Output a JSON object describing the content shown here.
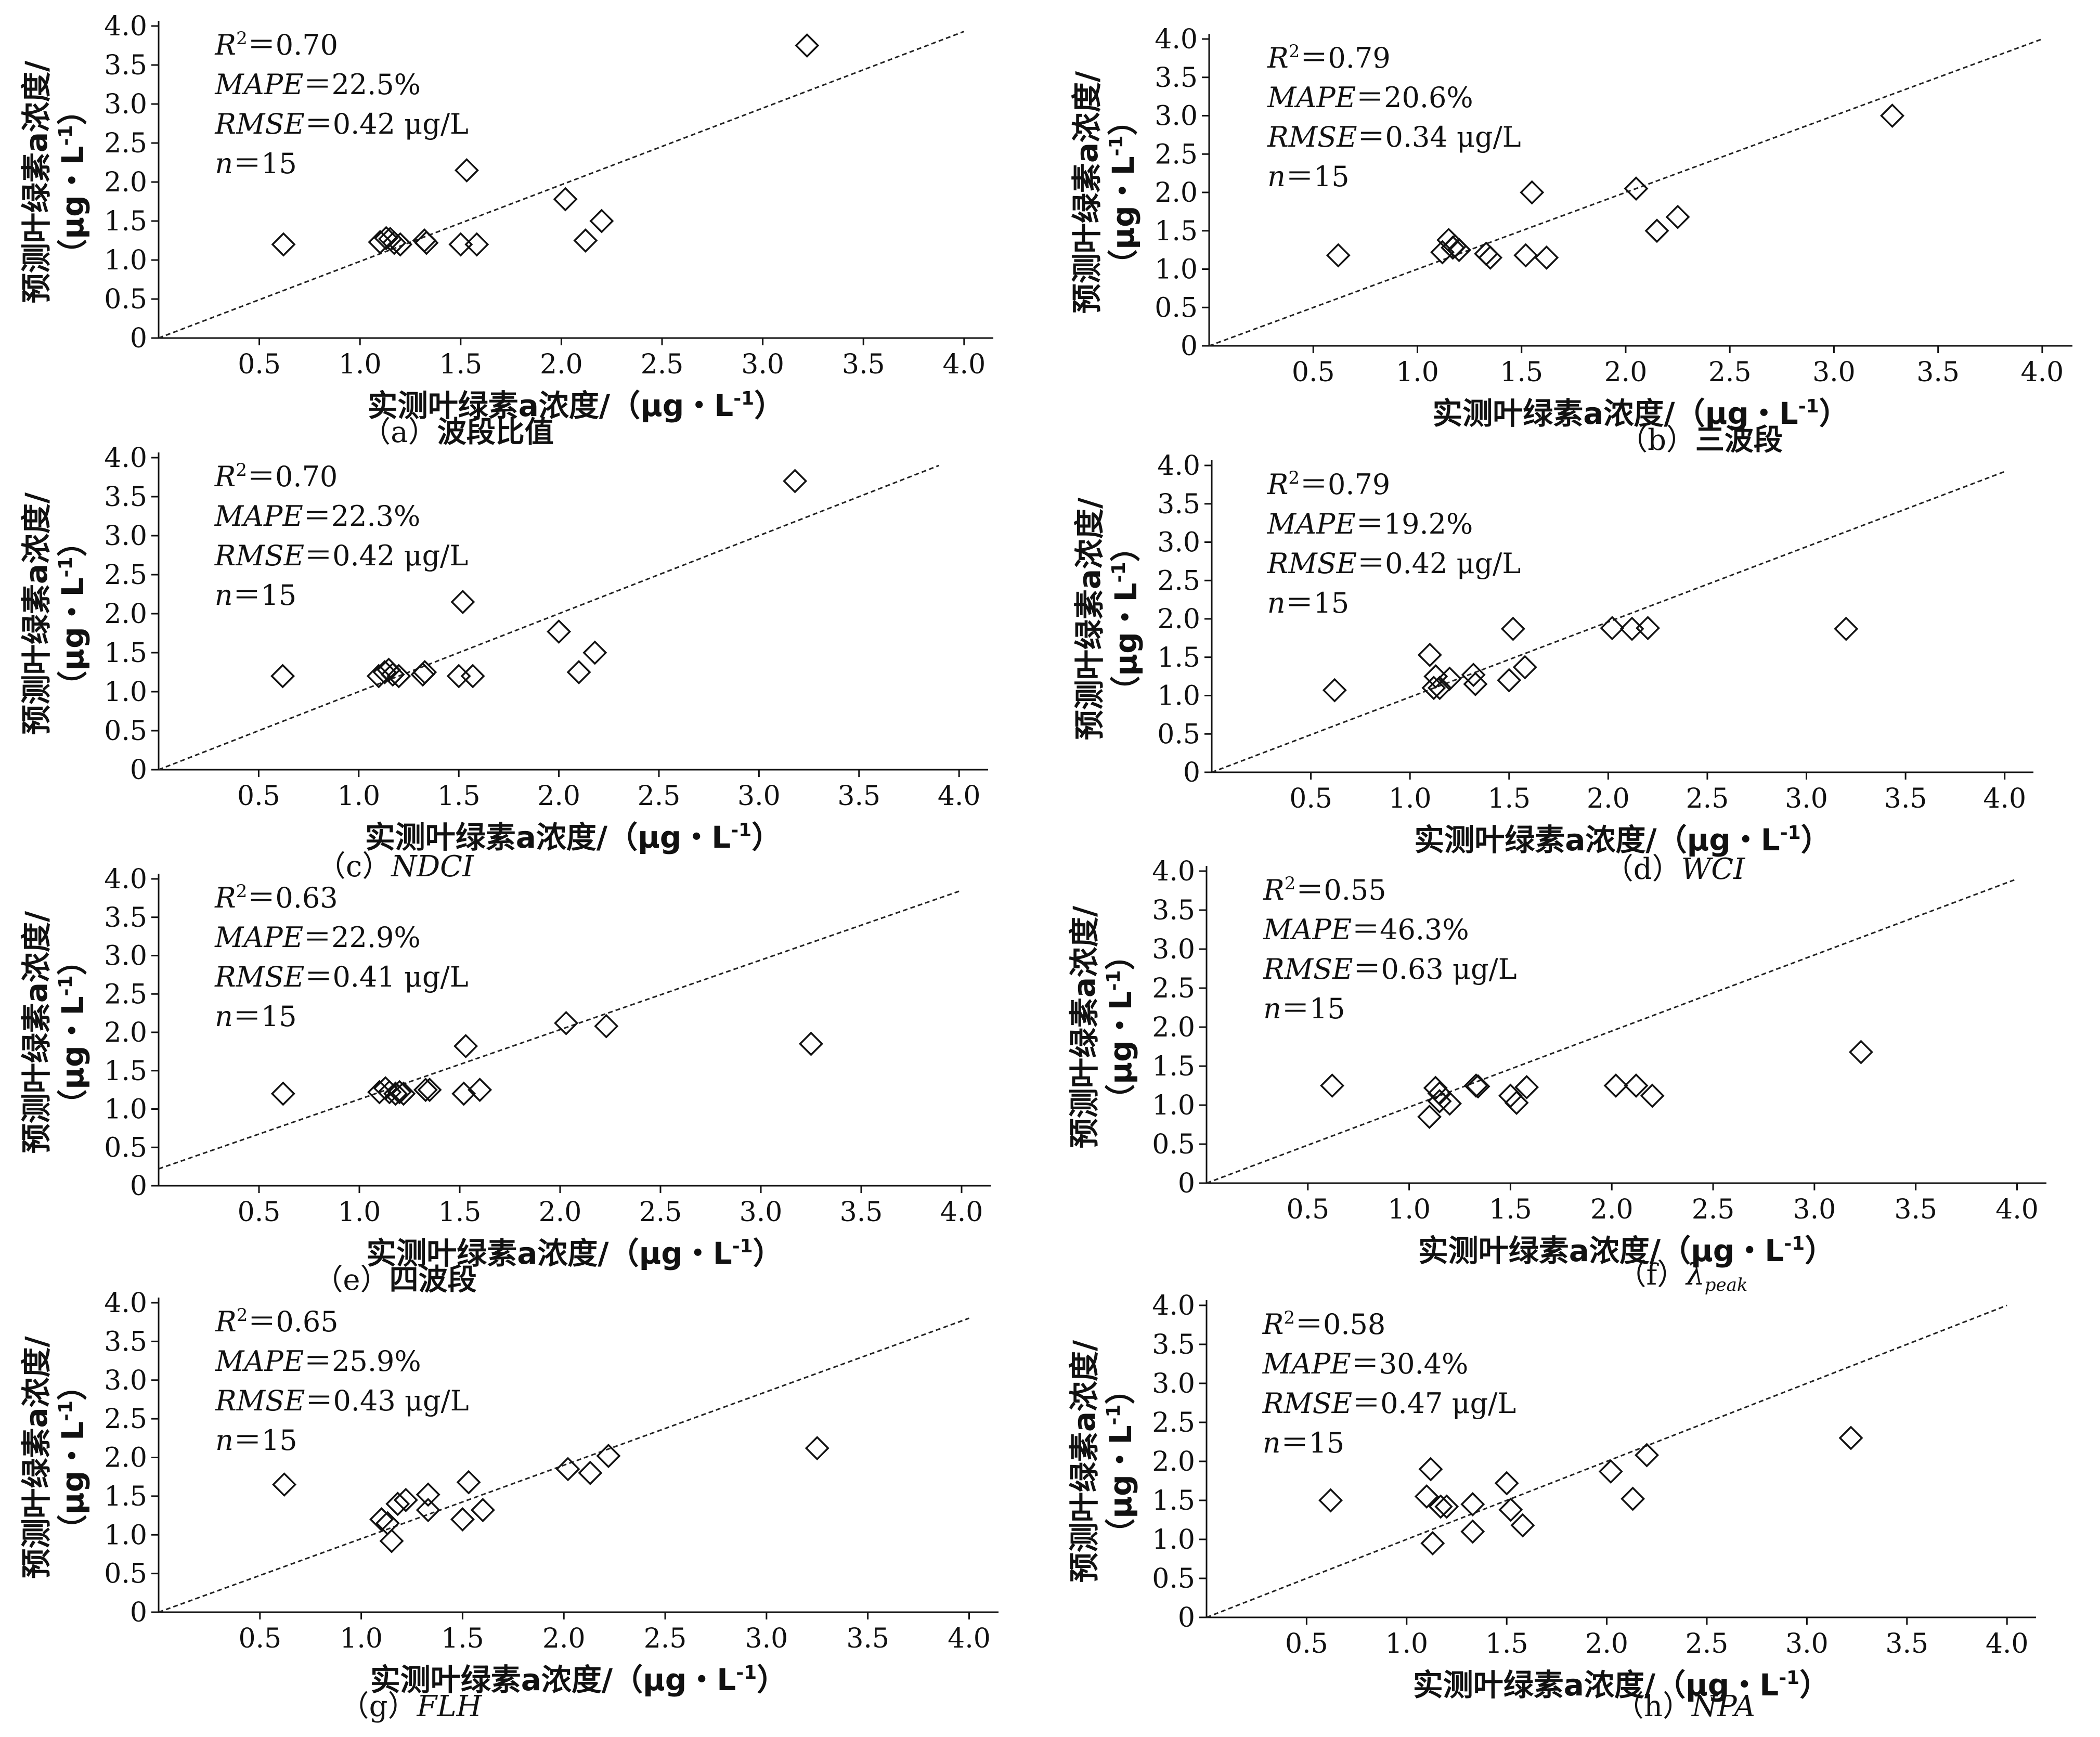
{
  "chart_data": [
    {
      "type": "scatter",
      "caption_prefix": "（a）",
      "caption": "波段比值",
      "caption_italic": false,
      "stats": {
        "r2": "0.70",
        "mape": "22.5%",
        "rmse": "0.42 μg/L",
        "n": "15"
      },
      "xlabel": "实测叶绿素a浓度/（μg・L-1）",
      "ylabel": "预测叶绿素a浓度/（μg・L-1）",
      "xlim": [
        0,
        4.0
      ],
      "ylim": [
        0,
        4.0
      ],
      "xticks": [
        "0.5",
        "1.0",
        "1.5",
        "2.0",
        "2.5",
        "3.0",
        "3.5",
        "4.0"
      ],
      "yticks": [
        "0",
        "0.5",
        "1.0",
        "1.5",
        "2.0",
        "2.5",
        "3.0",
        "3.5",
        "4.0"
      ],
      "ref_line": {
        "x": [
          0,
          4.0
        ],
        "y": [
          0,
          3.93
        ]
      },
      "points": [
        [
          0.62,
          1.2
        ],
        [
          1.1,
          1.23
        ],
        [
          1.13,
          1.28
        ],
        [
          1.15,
          1.27
        ],
        [
          1.17,
          1.22
        ],
        [
          1.2,
          1.2
        ],
        [
          1.32,
          1.25
        ],
        [
          1.33,
          1.22
        ],
        [
          1.5,
          1.2
        ],
        [
          1.53,
          2.15
        ],
        [
          1.58,
          1.2
        ],
        [
          2.02,
          1.78
        ],
        [
          2.12,
          1.25
        ],
        [
          2.2,
          1.5
        ],
        [
          3.22,
          3.75
        ]
      ]
    },
    {
      "type": "scatter",
      "caption_prefix": "（b）",
      "caption": "三波段",
      "caption_italic": false,
      "stats": {
        "r2": "0.79",
        "mape": "20.6%",
        "rmse": "0.34 μg/L",
        "n": "15"
      },
      "xlabel": "实测叶绿素a浓度/（μg・L-1）",
      "ylabel": "预测叶绿素a浓度/（μg・L-1）",
      "xlim": [
        0,
        4.0
      ],
      "ylim": [
        0,
        4.0
      ],
      "xticks": [
        "0.5",
        "1.0",
        "1.5",
        "2.0",
        "2.5",
        "3.0",
        "3.5",
        "4.0"
      ],
      "yticks": [
        "0",
        "0.5",
        "1.0",
        "1.5",
        "2.0",
        "2.5",
        "3.0",
        "3.5",
        "4.0"
      ],
      "ref_line": {
        "x": [
          0,
          4.0
        ],
        "y": [
          0,
          4.0
        ]
      },
      "points": [
        [
          0.62,
          1.18
        ],
        [
          1.12,
          1.22
        ],
        [
          1.15,
          1.38
        ],
        [
          1.17,
          1.28
        ],
        [
          1.2,
          1.25
        ],
        [
          1.33,
          1.2
        ],
        [
          1.35,
          1.15
        ],
        [
          1.52,
          1.18
        ],
        [
          1.55,
          2.0
        ],
        [
          1.62,
          1.15
        ],
        [
          2.05,
          2.05
        ],
        [
          2.15,
          1.5
        ],
        [
          2.25,
          1.68
        ],
        [
          3.28,
          3.0
        ],
        [
          1.18,
          1.3
        ]
      ]
    },
    {
      "type": "scatter",
      "caption_prefix": "（c）",
      "caption": "NDCI",
      "caption_italic": true,
      "stats": {
        "r2": "0.70",
        "mape": "22.3%",
        "rmse": "0.42 μg/L",
        "n": "15"
      },
      "xlabel": "实测叶绿素a浓度/（μg・L-1）",
      "ylabel": "预测叶绿素a浓度/（μg・L-1）",
      "xlim": [
        0,
        4.0
      ],
      "ylim": [
        0,
        4.0
      ],
      "xticks": [
        "0.5",
        "1.0",
        "1.5",
        "2.0",
        "2.5",
        "3.0",
        "3.5",
        "4.0"
      ],
      "yticks": [
        "0",
        "0.5",
        "1.0",
        "1.5",
        "2.0",
        "2.5",
        "3.0",
        "3.5",
        "4.0"
      ],
      "ref_line": {
        "x": [
          0,
          3.9
        ],
        "y": [
          0,
          3.9
        ]
      },
      "points": [
        [
          0.62,
          1.2
        ],
        [
          1.1,
          1.2
        ],
        [
          1.13,
          1.25
        ],
        [
          1.15,
          1.28
        ],
        [
          1.17,
          1.22
        ],
        [
          1.2,
          1.2
        ],
        [
          1.32,
          1.22
        ],
        [
          1.33,
          1.25
        ],
        [
          1.5,
          1.2
        ],
        [
          1.52,
          2.15
        ],
        [
          1.57,
          1.2
        ],
        [
          2.0,
          1.77
        ],
        [
          2.1,
          1.25
        ],
        [
          2.18,
          1.5
        ],
        [
          3.18,
          3.7
        ]
      ]
    },
    {
      "type": "scatter",
      "caption_prefix": "（d）",
      "caption": "WCI",
      "caption_italic": true,
      "stats": {
        "r2": "0.79",
        "mape": "19.2%",
        "rmse": "0.42 μg/L",
        "n": "15"
      },
      "xlabel": "实测叶绿素a浓度/（μg・L-1）",
      "ylabel": "预测叶绿素a浓度/（μg・L-1）",
      "xlim": [
        0,
        4.0
      ],
      "ylim": [
        0,
        4.0
      ],
      "xticks": [
        "0.5",
        "1.0",
        "1.5",
        "2.0",
        "2.5",
        "3.0",
        "3.5",
        "4.0"
      ],
      "yticks": [
        "0",
        "0.5",
        "1.0",
        "1.5",
        "2.0",
        "2.5",
        "3.0",
        "3.5",
        "4.0"
      ],
      "ref_line": {
        "x": [
          0,
          4.0
        ],
        "y": [
          0,
          3.92
        ]
      },
      "points": [
        [
          0.62,
          1.07
        ],
        [
          1.1,
          1.53
        ],
        [
          1.12,
          1.1
        ],
        [
          1.13,
          1.25
        ],
        [
          1.15,
          1.1
        ],
        [
          1.2,
          1.22
        ],
        [
          1.32,
          1.27
        ],
        [
          1.33,
          1.15
        ],
        [
          1.5,
          1.2
        ],
        [
          1.52,
          1.87
        ],
        [
          1.58,
          1.37
        ],
        [
          2.02,
          1.88
        ],
        [
          2.12,
          1.87
        ],
        [
          2.2,
          1.88
        ],
        [
          3.2,
          1.87
        ]
      ]
    },
    {
      "type": "scatter",
      "caption_prefix": "（e）",
      "caption": "四波段",
      "caption_italic": false,
      "stats": {
        "r2": "0.63",
        "mape": "22.9%",
        "rmse": "0.41 μg/L",
        "n": "15"
      },
      "xlabel": "实测叶绿素a浓度/（μg・L-1）",
      "ylabel": "预测叶绿素a浓度/（μg・L-1）",
      "xlim": [
        0,
        4.0
      ],
      "ylim": [
        0,
        4.0
      ],
      "xticks": [
        "0.5",
        "1.0",
        "1.5",
        "2.0",
        "2.5",
        "3.0",
        "3.5",
        "4.0"
      ],
      "yticks": [
        "0",
        "0.5",
        "1.0",
        "1.5",
        "2.0",
        "2.5",
        "3.0",
        "3.5",
        "4.0"
      ],
      "ref_line": {
        "x": [
          0,
          4.0
        ],
        "y": [
          0.22,
          3.85
        ]
      },
      "points": [
        [
          0.62,
          1.2
        ],
        [
          1.1,
          1.22
        ],
        [
          1.13,
          1.27
        ],
        [
          1.15,
          1.22
        ],
        [
          1.18,
          1.2
        ],
        [
          1.22,
          1.2
        ],
        [
          1.33,
          1.25
        ],
        [
          1.35,
          1.25
        ],
        [
          1.52,
          1.2
        ],
        [
          1.53,
          1.82
        ],
        [
          1.6,
          1.25
        ],
        [
          2.03,
          2.12
        ],
        [
          2.23,
          2.08
        ],
        [
          3.25,
          1.85
        ],
        [
          1.2,
          1.22
        ]
      ]
    },
    {
      "type": "scatter",
      "caption_prefix": "（f）",
      "caption": "λ",
      "caption_sub": "peak",
      "caption_italic": true,
      "stats": {
        "r2": "0.55",
        "mape": "46.3%",
        "rmse": "0.63 μg/L",
        "n": "15"
      },
      "xlabel": "实测叶绿素a浓度/（μg・L-1）",
      "ylabel": "预测叶绿素a浓度/（μg・L-1）",
      "xlim": [
        0,
        4.0
      ],
      "ylim": [
        0,
        4.0
      ],
      "xticks": [
        "0.5",
        "1.0",
        "1.5",
        "2.0",
        "2.5",
        "3.0",
        "3.5",
        "4.0"
      ],
      "yticks": [
        "0",
        "0.5",
        "1.0",
        "1.5",
        "2.0",
        "2.5",
        "3.0",
        "3.5",
        "4.0"
      ],
      "ref_line": {
        "x": [
          0,
          4.0
        ],
        "y": [
          0,
          3.9
        ]
      },
      "points": [
        [
          0.62,
          1.25
        ],
        [
          1.1,
          0.85
        ],
        [
          1.13,
          1.22
        ],
        [
          1.15,
          1.05
        ],
        [
          1.2,
          1.02
        ],
        [
          1.33,
          1.25
        ],
        [
          1.5,
          1.12
        ],
        [
          1.53,
          1.03
        ],
        [
          1.58,
          1.23
        ],
        [
          2.02,
          1.25
        ],
        [
          2.12,
          1.25
        ],
        [
          2.2,
          1.12
        ],
        [
          3.23,
          1.68
        ],
        [
          1.15,
          1.15
        ],
        [
          1.34,
          1.24
        ]
      ]
    },
    {
      "type": "scatter",
      "caption_prefix": "（g）",
      "caption": "FLH",
      "caption_italic": true,
      "stats": {
        "r2": "0.65",
        "mape": "25.9%",
        "rmse": "0.43 μg/L",
        "n": "15"
      },
      "xlabel": "实测叶绿素a浓度/（μg・L-1）",
      "ylabel": "预测叶绿素a浓度/（μg・L-1）",
      "xlim": [
        0,
        4.0
      ],
      "ylim": [
        0,
        4.0
      ],
      "xticks": [
        "0.5",
        "1.0",
        "1.5",
        "2.0",
        "2.5",
        "3.0",
        "3.5",
        "4.0"
      ],
      "yticks": [
        "0",
        "0.5",
        "1.0",
        "1.5",
        "2.0",
        "2.5",
        "3.0",
        "3.5",
        "4.0"
      ],
      "ref_line": {
        "x": [
          0,
          4.0
        ],
        "y": [
          0,
          3.8
        ]
      },
      "points": [
        [
          0.62,
          1.65
        ],
        [
          1.1,
          1.2
        ],
        [
          1.13,
          1.15
        ],
        [
          1.15,
          0.92
        ],
        [
          1.18,
          1.4
        ],
        [
          1.22,
          1.45
        ],
        [
          1.33,
          1.52
        ],
        [
          1.33,
          1.32
        ],
        [
          1.5,
          1.2
        ],
        [
          1.53,
          1.68
        ],
        [
          1.6,
          1.32
        ],
        [
          2.02,
          1.85
        ],
        [
          2.13,
          1.8
        ],
        [
          2.22,
          2.02
        ],
        [
          3.25,
          2.12
        ]
      ]
    },
    {
      "type": "scatter",
      "caption_prefix": "（h）",
      "caption": "NPA",
      "caption_italic": true,
      "stats": {
        "r2": "0.58",
        "mape": "30.4%",
        "rmse": "0.47 μg/L",
        "n": "15"
      },
      "xlabel": "实测叶绿素a浓度/（μg・L-1）",
      "ylabel": "预测叶绿素a浓度/（μg・L-1）",
      "xlim": [
        0,
        4.0
      ],
      "ylim": [
        0,
        4.0
      ],
      "xticks": [
        "0.5",
        "1.0",
        "1.5",
        "2.0",
        "2.5",
        "3.0",
        "3.5",
        "4.0"
      ],
      "yticks": [
        "0",
        "0.5",
        "1.0",
        "1.5",
        "2.0",
        "2.5",
        "3.0",
        "3.5",
        "4.0"
      ],
      "ref_line": {
        "x": [
          0,
          4.0
        ],
        "y": [
          0,
          4.0
        ]
      },
      "points": [
        [
          0.62,
          1.5
        ],
        [
          1.1,
          1.55
        ],
        [
          1.12,
          1.9
        ],
        [
          1.13,
          0.95
        ],
        [
          1.17,
          1.42
        ],
        [
          1.2,
          1.42
        ],
        [
          1.33,
          1.45
        ],
        [
          1.33,
          1.1
        ],
        [
          1.5,
          1.72
        ],
        [
          1.52,
          1.38
        ],
        [
          1.58,
          1.18
        ],
        [
          2.02,
          1.87
        ],
        [
          2.13,
          1.52
        ],
        [
          2.2,
          2.08
        ],
        [
          3.22,
          2.3
        ]
      ]
    }
  ]
}
